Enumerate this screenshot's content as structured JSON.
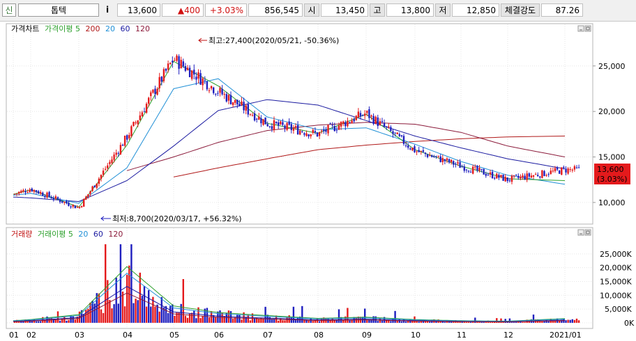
{
  "ticker": {
    "code_label": "신",
    "name": "톱텍",
    "info_icon": "i",
    "price": "13,600",
    "change": "▲400",
    "change_pct": "+3.03%",
    "volume": "856,545",
    "open_label": "시",
    "open": "13,450",
    "high_label": "고",
    "high": "13,800",
    "low_label": "저",
    "low": "12,850",
    "strength_label": "체결강도",
    "strength": "87.26"
  },
  "colors": {
    "up": "#e41a1c",
    "down": "#1f1fbf",
    "ma5": "#2ca02c",
    "ma20": "#1f8fd6",
    "ma60": "#1a1aa0",
    "ma120": "#8b1a3a",
    "ma200": "#b01818",
    "price_box": "#e41a1c"
  },
  "price_panel": {
    "legend": {
      "title": "가격차트",
      "ma_label": "가격이평 5",
      "p200": "200",
      "p20": "20",
      "p60": "60",
      "p120": "120"
    },
    "current_price_tag": "13,600",
    "current_pct_tag": "(3.03%)",
    "max_annotation": "최고:27,400(2020/05/21, -50.36%)",
    "min_annotation": "최저:8,700(2020/03/17, +56.32%)"
  },
  "volume_panel": {
    "legend": {
      "title": "거래량",
      "ma_label": "거래이평 5",
      "p20": "20",
      "p60": "60",
      "p120": "120"
    }
  },
  "chart_data": [
    {
      "type": "candlestick",
      "x_ticks": [
        "01",
        "02",
        "03",
        "04",
        "05",
        "06",
        "07",
        "08",
        "09",
        "10",
        "11",
        "12",
        "2021/01"
      ],
      "y_ticks": [
        "10,000",
        "15,000",
        "20,000",
        "25,000"
      ],
      "ylim": [
        7700,
        28500
      ],
      "series": [
        {
          "name": "200",
          "values": [
            null,
            null,
            null,
            null,
            12800,
            13800,
            14800,
            15800,
            16300,
            16700,
            17000,
            17200,
            17300
          ]
        },
        {
          "name": "120",
          "values": [
            null,
            null,
            null,
            13500,
            15000,
            16600,
            17900,
            18500,
            18800,
            18600,
            17700,
            16200,
            15000
          ]
        },
        {
          "name": "60",
          "values": [
            10600,
            10500,
            10100,
            12400,
            16200,
            20100,
            21300,
            20700,
            19000,
            17300,
            16000,
            14800,
            13700
          ]
        },
        {
          "name": "20",
          "values": [
            10800,
            11000,
            9900,
            13800,
            22500,
            23600,
            19400,
            18000,
            18200,
            16400,
            14500,
            13000,
            12000
          ]
        },
        {
          "name": "5",
          "values": [
            10900,
            11400,
            9500,
            16300,
            25500,
            22800,
            18700,
            17600,
            19700,
            15800,
            14000,
            12600,
            12400
          ]
        }
      ],
      "close": [
        10900,
        11500,
        9400,
        17200,
        25800,
        22200,
        18700,
        17500,
        19800,
        15700,
        14000,
        12500,
        13600
      ]
    },
    {
      "type": "bar",
      "x_ticks": [
        "01",
        "02",
        "03",
        "04",
        "05",
        "06",
        "07",
        "08",
        "09",
        "10",
        "11",
        "12",
        "2021/01"
      ],
      "y_ticks": [
        "0K",
        "5,000K",
        "10,000K",
        "15,000K",
        "20,000K",
        "25,000K"
      ],
      "ylim": [
        -1800,
        29000
      ],
      "values_k": [
        900,
        1400,
        3500,
        24000,
        7200,
        4400,
        3100,
        1900,
        2400,
        1400,
        900,
        700,
        1800
      ]
    }
  ]
}
